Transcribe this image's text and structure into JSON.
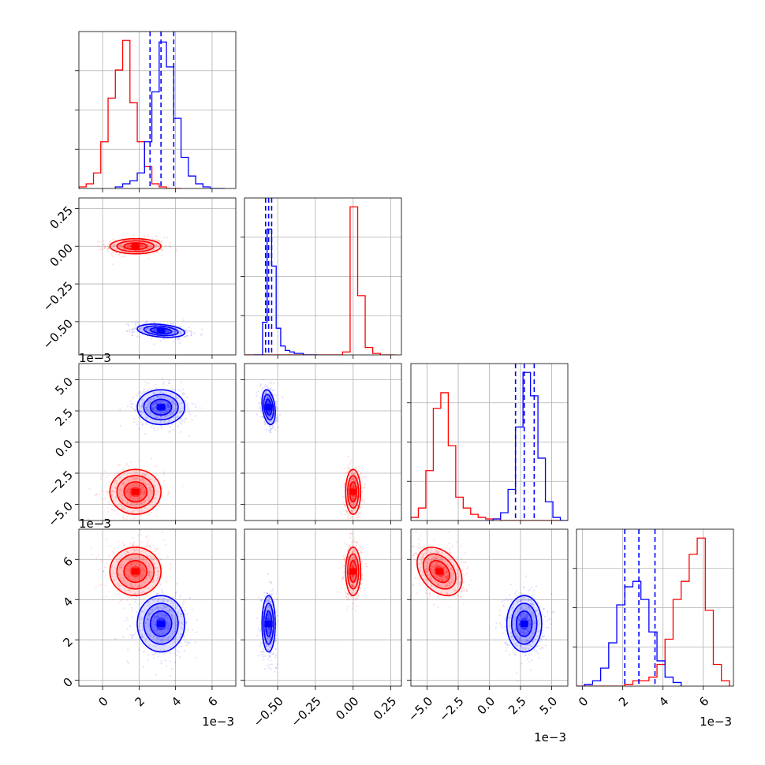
{
  "chart_data": {
    "type": "corner",
    "colors": {
      "red": "#ff0000",
      "blue": "#0000ff",
      "grid": "#b0b0b0",
      "axis": "#000000"
    },
    "grid": true,
    "parameters": [
      {
        "range": [
          -0.0013,
          0.0073
        ],
        "ticks": [
          0,
          0.002,
          0.004,
          0.006
        ],
        "tick_labels": [
          "0",
          "2",
          "4",
          "6"
        ],
        "offset": "1e−3"
      },
      {
        "range": [
          -0.72,
          0.32
        ],
        "ticks": [
          -0.5,
          -0.25,
          0.0,
          0.25
        ],
        "tick_labels": [
          "−0.50",
          "−0.25",
          "0.00",
          "0.25"
        ],
        "offset": ""
      },
      {
        "range": [
          -0.0063,
          0.0063
        ],
        "ticks": [
          -0.005,
          -0.0025,
          0.0,
          0.0025,
          0.005
        ],
        "tick_labels": [
          "−5.0",
          "−2.5",
          "0.0",
          "2.5",
          "5.0"
        ],
        "offset": "1e−3"
      },
      {
        "range": [
          -0.0003,
          0.0075
        ],
        "ticks": [
          0,
          0.002,
          0.004,
          0.006
        ],
        "tick_labels": [
          "0",
          "2",
          "4",
          "6"
        ],
        "offset": "1e−3"
      }
    ],
    "series": [
      {
        "color": "red",
        "means": [
          0.0018,
          0.0,
          -0.004,
          0.0054
        ],
        "stds": [
          0.0007,
          0.025,
          0.0009,
          0.0006
        ],
        "correlations": {
          "0-1": 0.0,
          "0-2": 0.0,
          "0-3": 0.0,
          "1-2": 0.0,
          "1-3": 0.0,
          "2-3": -0.35
        },
        "histograms": [
          {
            "edges": [
              -0.0013,
              -0.0009,
              -0.0005,
              -0.0001,
              0.0003,
              0.0007,
              0.0011,
              0.0015,
              0.0019,
              0.0023,
              0.0027,
              0.0031,
              0.0035,
              0.0039,
              0.0043
            ],
            "counts": [
              1,
              3,
              10,
              30,
              58,
              76,
              95,
              55,
              30,
              14,
              3,
              1,
              0,
              0
            ]
          },
          {
            "edges": [
              -0.72,
              -0.67,
              -0.62,
              -0.57,
              -0.52,
              -0.47,
              -0.42,
              -0.37,
              -0.32,
              -0.27,
              -0.22,
              -0.17,
              -0.12,
              -0.07,
              -0.02,
              0.03,
              0.08,
              0.13,
              0.18,
              0.23,
              0.28
            ],
            "counts": [
              0,
              0,
              0,
              0,
              0,
              0,
              0,
              0,
              0,
              0,
              0,
              0,
              0,
              2,
              100,
              40,
              5,
              1,
              0,
              0
            ]
          },
          {
            "edges": [
              -0.0063,
              -0.0057,
              -0.0051,
              -0.0045,
              -0.0039,
              -0.0033,
              -0.0027,
              -0.0021,
              -0.0015,
              -0.0009,
              -0.0003,
              0.0003,
              0.0009,
              0.0015,
              0.0021,
              0.0027,
              0.0033,
              0.0039,
              0.0045,
              0.0051,
              0.0057
            ],
            "counts": [
              2,
              8,
              32,
              72,
              82,
              48,
              15,
              8,
              4,
              2,
              1,
              1,
              0,
              0,
              0,
              0,
              0,
              0,
              0,
              0
            ]
          },
          {
            "edges": [
              -0.0003,
              0.0001,
              0.0005,
              0.0009,
              0.0013,
              0.0017,
              0.0021,
              0.0025,
              0.0029,
              0.0033,
              0.0037,
              0.0041,
              0.0045,
              0.0049,
              0.0053,
              0.0057,
              0.0061,
              0.0065,
              0.0069,
              0.0073
            ],
            "counts": [
              0,
              0,
              0,
              0,
              0,
              0,
              1,
              3,
              3,
              5,
              12,
              26,
              48,
              58,
              73,
              82,
              42,
              12,
              3
            ]
          }
        ]
      },
      {
        "color": "blue",
        "means": [
          0.0032,
          -0.56,
          0.0028,
          0.0028
        ],
        "stds": [
          0.00065,
          0.022,
          0.0007,
          0.0007
        ],
        "correlations": {
          "0-1": -0.3,
          "0-2": 0.0,
          "0-3": 0.0,
          "1-2": -0.3,
          "1-3": 0.0,
          "2-3": 0.0
        },
        "quantiles": [
          [
            0.0026,
            0.0032,
            0.0039
          ],
          [
            -0.58,
            -0.56,
            -0.54
          ],
          [
            0.0021,
            0.0028,
            0.0036
          ],
          [
            0.0021,
            0.0028,
            0.0036
          ]
        ],
        "histograms": [
          {
            "edges": [
              0.0007,
              0.0011,
              0.0015,
              0.0019,
              0.0023,
              0.0027,
              0.0031,
              0.0035,
              0.0039,
              0.0043,
              0.0047,
              0.0051,
              0.0055,
              0.0059,
              0.0063,
              0.0067
            ],
            "counts": [
              1,
              3,
              5,
              10,
              30,
              62,
              94,
              78,
              45,
              20,
              8,
              3,
              1,
              0,
              0
            ]
          },
          {
            "edges": [
              -0.66,
              -0.63,
              -0.6,
              -0.57,
              -0.54,
              -0.51,
              -0.48,
              -0.45,
              -0.42,
              -0.39,
              -0.36,
              -0.33,
              -0.3,
              -0.27,
              -0.24
            ],
            "counts": [
              0,
              0,
              22,
              85,
              60,
              18,
              6,
              3,
              2,
              1,
              1,
              0,
              0,
              0
            ]
          },
          {
            "edges": [
              -0.0003,
              0.0003,
              0.0009,
              0.0015,
              0.0021,
              0.0027,
              0.0033,
              0.0039,
              0.0045,
              0.0051,
              0.0057,
              0.0063
            ],
            "counts": [
              0,
              1,
              5,
              20,
              60,
              95,
              80,
              40,
              12,
              2,
              0
            ]
          },
          {
            "edges": [
              0.0001,
              0.0005,
              0.0009,
              0.0013,
              0.0017,
              0.0021,
              0.0025,
              0.0029,
              0.0033,
              0.0037,
              0.0041,
              0.0045,
              0.0049
            ],
            "counts": [
              1,
              3,
              10,
              24,
              45,
              55,
              58,
              48,
              30,
              14,
              5,
              2
            ]
          }
        ]
      }
    ]
  }
}
